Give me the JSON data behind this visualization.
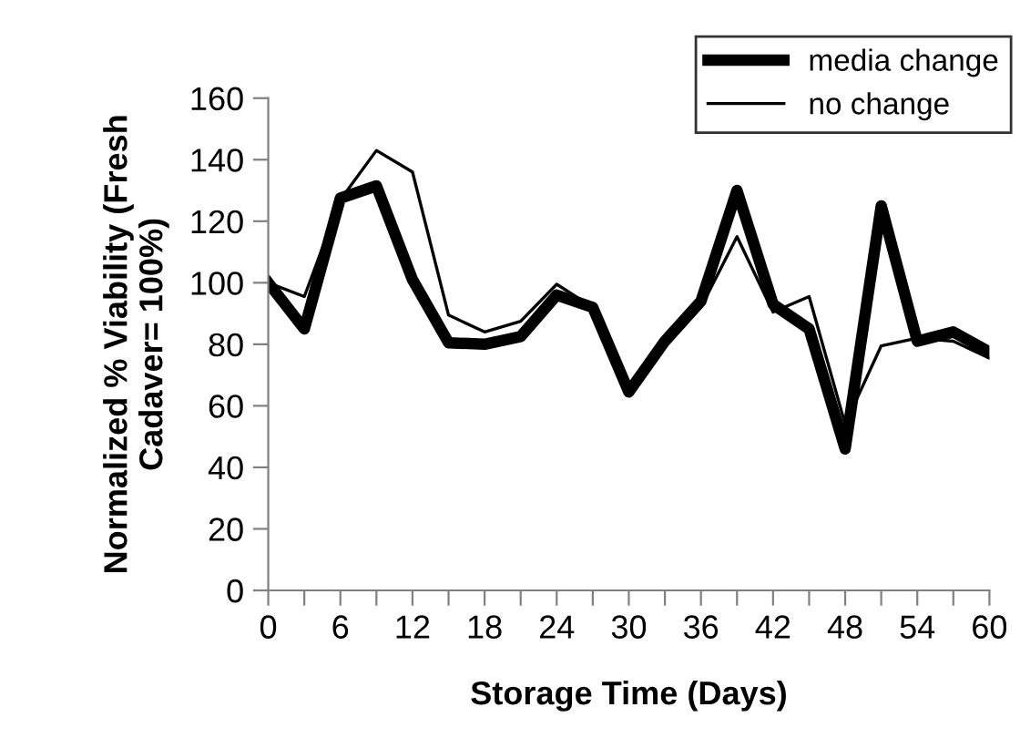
{
  "chart_data": {
    "type": "line",
    "xlabel": "Storage Time (Days)",
    "ylabel": "Normalized % Viability (Fresh\nCadaver= 100%)",
    "x": [
      0,
      3,
      6,
      9,
      12,
      15,
      18,
      21,
      24,
      27,
      30,
      33,
      36,
      39,
      42,
      45,
      48,
      51,
      54,
      57,
      60
    ],
    "series": [
      {
        "name": "media change",
        "color": "#000000",
        "values": [
          100,
          85,
          127.5,
          131.5,
          101,
          80.5,
          80,
          82.5,
          96,
          92,
          64.5,
          81,
          94,
          130,
          93,
          85,
          46,
          125,
          81,
          84,
          77.5
        ]
      },
      {
        "name": "no change",
        "color": "#000000",
        "values": [
          100,
          95.5,
          127,
          143,
          136,
          89.5,
          84,
          87.5,
          99.5,
          92,
          64.5,
          81,
          92,
          115,
          90.5,
          95.5,
          54,
          79.5,
          82,
          81,
          75.5
        ]
      }
    ],
    "xlim": [
      0,
      60
    ],
    "ylim": [
      0,
      160
    ],
    "xticks": [
      0,
      {
        "value": 3,
        "label": null
      },
      6,
      {
        "value": 9,
        "label": null
      },
      12,
      {
        "value": 15,
        "label": null
      },
      18,
      {
        "value": 21,
        "label": null
      },
      24,
      {
        "value": 27,
        "label": null
      },
      30,
      {
        "value": 33,
        "label": null
      },
      36,
      {
        "value": 39,
        "label": null
      },
      42,
      {
        "value": 45,
        "label": null
      },
      48,
      {
        "value": 51,
        "label": null
      },
      54,
      {
        "value": 57,
        "label": null
      },
      60
    ],
    "yticks": [
      0,
      20,
      40,
      60,
      80,
      100,
      120,
      140,
      160
    ],
    "legend": "top right",
    "grid": false,
    "marker": "none",
    "line_style": "solid"
  }
}
